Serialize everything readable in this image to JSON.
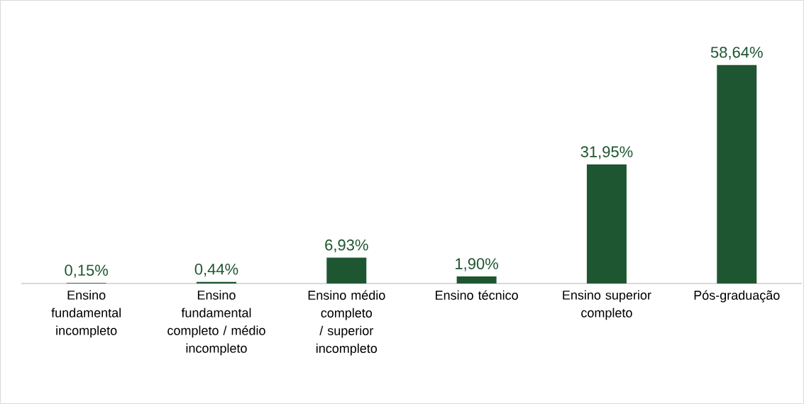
{
  "chart_data": {
    "type": "bar",
    "categories": [
      "Ensino fundamental incompleto",
      "Ensino fundamental completo / médio incompleto",
      "Ensino médio completo / superior incompleto",
      "Ensino técnico",
      "Ensino superior completo",
      "Pós-graduação"
    ],
    "values": [
      0.15,
      0.44,
      6.93,
      1.9,
      31.95,
      58.64
    ],
    "value_labels": [
      "0,15%",
      "0,44%",
      "6,93%",
      "1,90%",
      "31,95%",
      "58,64%"
    ],
    "color": "#1e5631"
  }
}
